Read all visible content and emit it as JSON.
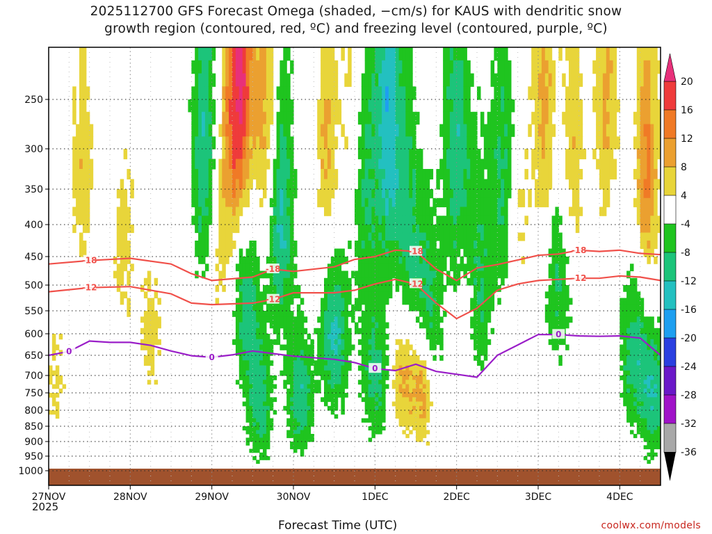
{
  "title": {
    "line1": "2025112700 GFS Forecast Omega (shaded, −cm/s) for KAUS with dendritic snow",
    "line2": "growth region (contoured, red, ºC) and freezing level (contoured, purple, ºC)"
  },
  "credit": "coolwx.com/models",
  "chart_data": {
    "type": "heatmap",
    "xlabel": "Forecast Time (UTC)",
    "ylabel": "",
    "x_ticks": [
      "27NOV",
      "28NOV",
      "29NOV",
      "30NOV",
      "1DEC",
      "2DEC",
      "3DEC",
      "4DEC"
    ],
    "x_year": "2025",
    "x_range_hours": [
      0,
      180
    ],
    "y_ticks": [
      250,
      300,
      350,
      400,
      450,
      500,
      550,
      600,
      650,
      700,
      750,
      800,
      850,
      900,
      950,
      1000
    ],
    "y_range": [
      200,
      1020
    ],
    "grid": true,
    "colorbar": {
      "labels": [
        20,
        16,
        12,
        8,
        4,
        -4,
        -8,
        -12,
        -16,
        -20,
        -24,
        -28,
        -32,
        -36
      ],
      "bins": [
        {
          "lo": 16,
          "hi": 20,
          "color": "#ef3b3b"
        },
        {
          "lo": 12,
          "hi": 16,
          "color": "#f07a26"
        },
        {
          "lo": 8,
          "hi": 12,
          "color": "#eba030"
        },
        {
          "lo": 4,
          "hi": 8,
          "color": "#e8d53a"
        },
        {
          "lo": -4,
          "hi": 4,
          "color": "#ffffff"
        },
        {
          "lo": -8,
          "hi": -4,
          "color": "#1fc41f"
        },
        {
          "lo": -12,
          "hi": -8,
          "color": "#1cc47a"
        },
        {
          "lo": -16,
          "hi": -12,
          "color": "#23c0c0"
        },
        {
          "lo": -20,
          "hi": -16,
          "color": "#1e9ff0"
        },
        {
          "lo": -24,
          "hi": -20,
          "color": "#2a3fe0"
        },
        {
          "lo": -28,
          "hi": -24,
          "color": "#6a18c8"
        },
        {
          "lo": -32,
          "hi": -28,
          "color": "#a012c8"
        },
        {
          "lo": -36,
          "hi": -32,
          "color": "#a8a8a8"
        }
      ],
      "top_extend_color": "#e8307a",
      "bottom_extend_color": "#000000"
    },
    "contours": [
      {
        "label": "-18",
        "color": "#f0504a",
        "x": [
          0,
          12,
          24,
          36,
          42,
          48,
          60,
          66,
          72,
          84,
          90,
          96,
          102,
          108,
          114,
          120,
          126,
          132,
          138,
          144,
          150,
          156,
          162,
          168,
          174,
          180
        ],
        "y": [
          463,
          457,
          453,
          463,
          480,
          492,
          486,
          472,
          476,
          468,
          455,
          450,
          440,
          442,
          472,
          492,
          470,
          464,
          456,
          448,
          446,
          440,
          442,
          440,
          445,
          447
        ]
      },
      {
        "label": "-12",
        "color": "#f0504a",
        "x": [
          0,
          12,
          24,
          36,
          42,
          48,
          60,
          66,
          72,
          84,
          90,
          96,
          102,
          108,
          114,
          120,
          126,
          132,
          138,
          144,
          150,
          156,
          162,
          168,
          174,
          180
        ],
        "y": [
          513,
          505,
          503,
          517,
          535,
          538,
          535,
          528,
          515,
          515,
          510,
          498,
          490,
          498,
          535,
          567,
          545,
          510,
          498,
          492,
          490,
          488,
          488,
          484,
          486,
          492
        ]
      },
      {
        "label": "0",
        "color": "#9a1ec8",
        "x": [
          0,
          6,
          12,
          18,
          24,
          30,
          36,
          42,
          48,
          54,
          60,
          66,
          72,
          84,
          90,
          96,
          102,
          108,
          114,
          120,
          126,
          132,
          138,
          144,
          150,
          156,
          162,
          168,
          174,
          180
        ],
        "y": [
          650,
          641,
          617,
          620,
          620,
          627,
          640,
          651,
          655,
          649,
          640,
          646,
          652,
          660,
          668,
          683,
          688,
          672,
          690,
          697,
          705,
          650,
          626,
          602,
          602,
          605,
          606,
          605,
          610,
          650
        ]
      }
    ],
    "ground_color": "#a0522d"
  }
}
